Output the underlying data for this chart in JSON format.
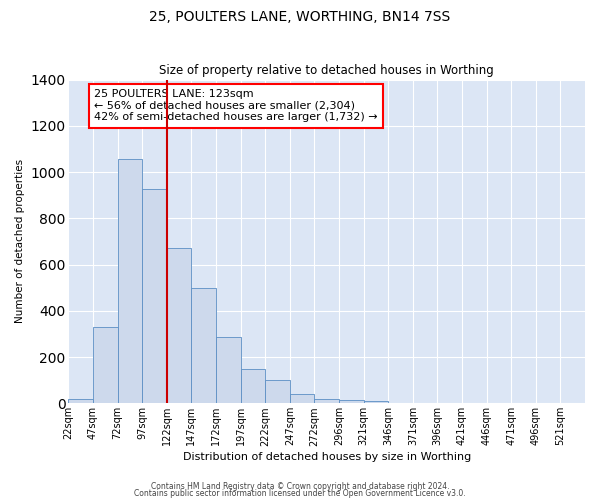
{
  "title": "25, POULTERS LANE, WORTHING, BN14 7SS",
  "subtitle": "Size of property relative to detached houses in Worthing",
  "xlabel": "Distribution of detached houses by size in Worthing",
  "ylabel": "Number of detached properties",
  "bar_color": "#cdd9ec",
  "bar_edge_color": "#5b8ec4",
  "background_color": "#dce6f5",
  "grid_color": "#ffffff",
  "annotation_text": "25 POULTERS LANE: 123sqm\n← 56% of detached houses are smaller (2,304)\n42% of semi-detached houses are larger (1,732) →",
  "vline_color": "#cc0000",
  "categories": [
    "22sqm",
    "47sqm",
    "72sqm",
    "97sqm",
    "122sqm",
    "147sqm",
    "172sqm",
    "197sqm",
    "222sqm",
    "247sqm",
    "272sqm",
    "296sqm",
    "321sqm",
    "346sqm",
    "371sqm",
    "396sqm",
    "421sqm",
    "446sqm",
    "471sqm",
    "496sqm",
    "521sqm"
  ],
  "values": [
    18,
    330,
    1058,
    925,
    670,
    500,
    285,
    148,
    100,
    40,
    20,
    15,
    10,
    0,
    0,
    0,
    0,
    0,
    0,
    0,
    0
  ],
  "ylim": [
    0,
    1400
  ],
  "yticks": [
    0,
    200,
    400,
    600,
    800,
    1000,
    1200,
    1400
  ],
  "figsize": [
    6.0,
    5.0
  ],
  "dpi": 100,
  "footnote1": "Contains HM Land Registry data © Crown copyright and database right 2024.",
  "footnote2": "Contains public sector information licensed under the Open Government Licence v3.0."
}
